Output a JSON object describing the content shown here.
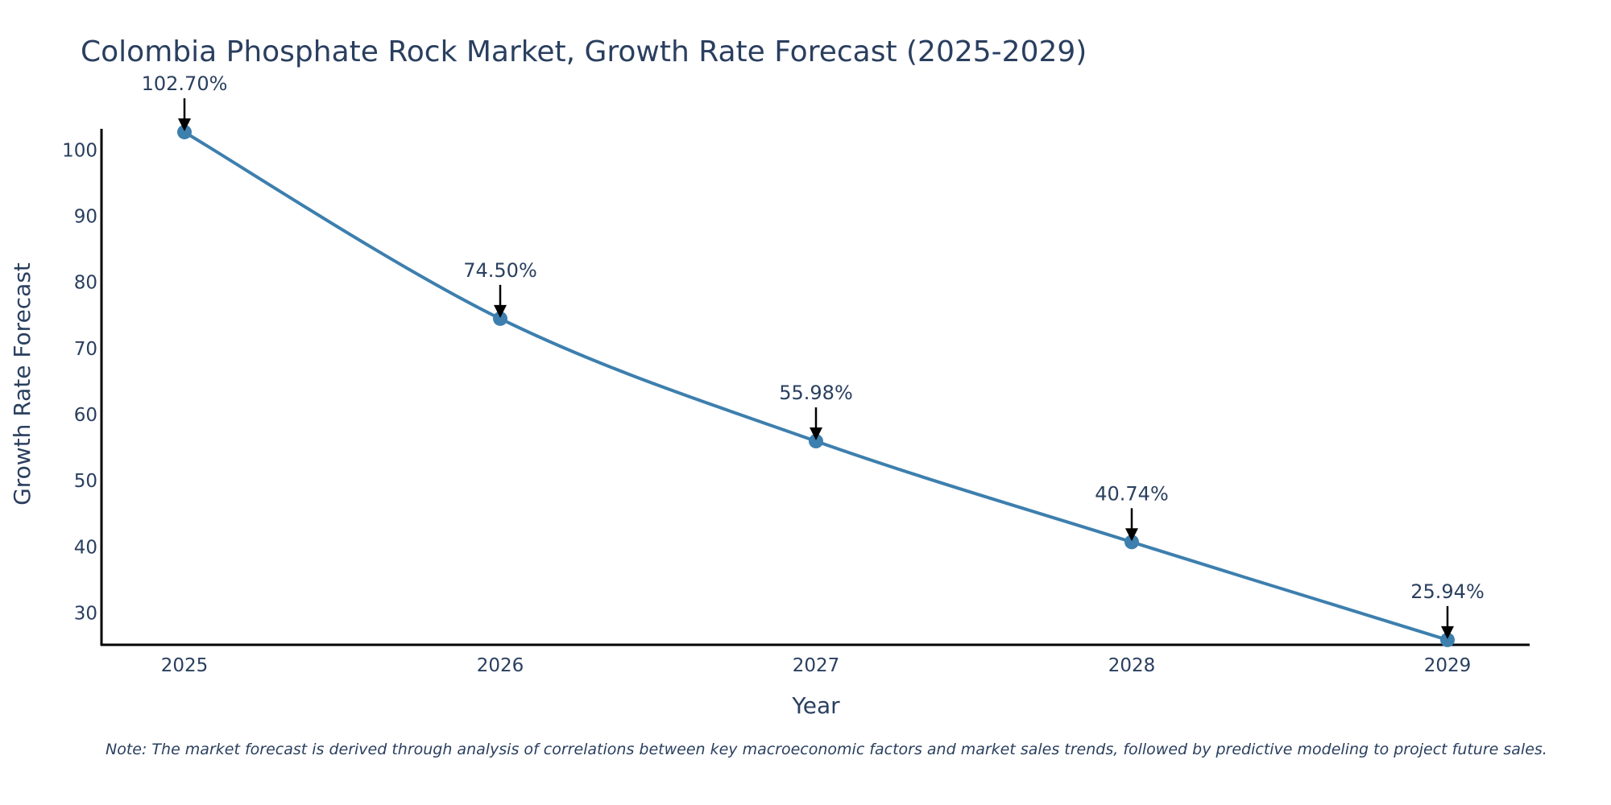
{
  "chart_data": {
    "type": "line",
    "title": "Colombia Phosphate Rock Market, Growth Rate Forecast (2025-2029)",
    "xlabel": "Year",
    "ylabel": "Growth Rate Forecast",
    "categories": [
      "2025",
      "2026",
      "2027",
      "2028",
      "2029"
    ],
    "series": [
      {
        "name": "Growth Rate Forecast",
        "values": [
          102.7,
          74.5,
          55.98,
          40.74,
          25.94
        ],
        "labels": [
          "102.70%",
          "74.50%",
          "55.98%",
          "40.74%",
          "25.94%"
        ]
      }
    ],
    "yticks": [
      30,
      40,
      50,
      60,
      70,
      80,
      90,
      100
    ],
    "ylim": [
      25.2,
      103.2
    ],
    "grid": false,
    "line_color": "#3d7fae",
    "marker_color": "#3d7fae",
    "arrow_color": "#000000",
    "axis_color": "#000000",
    "note": "Note: The market forecast is derived through analysis of correlations between key macroeconomic factors and market sales trends, followed by predictive modeling to project future sales."
  }
}
